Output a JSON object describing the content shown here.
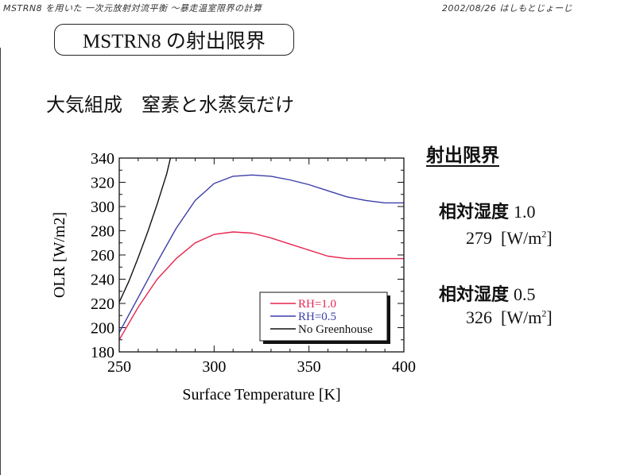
{
  "header": {
    "left_note": "MSTRN8 を用いた 一次元放射対流平衡 〜暴走温室限界の計算",
    "right_note": "2002/08/26 はしもとじょーじ"
  },
  "slide_title": "MSTRN8 の射出限界",
  "subtitle": "大気組成　窒素と水蒸気だけ",
  "side_panel": {
    "heading": "射出限界",
    "entries": [
      {
        "label": "相対湿度",
        "rh": "1.0",
        "value": "279",
        "unit_prefix": "[W/m",
        "unit_sup": "2",
        "unit_suffix": "]"
      },
      {
        "label": "相対湿度",
        "rh": "0.5",
        "value": "326",
        "unit_prefix": "[W/m",
        "unit_sup": "2",
        "unit_suffix": "]"
      }
    ]
  },
  "chart_data": {
    "type": "line",
    "xlabel": "Surface Temperature  [K]",
    "ylabel": "OLR  [W/m2]",
    "xlim": [
      250,
      400
    ],
    "ylim": [
      180,
      340
    ],
    "xticks": [
      250,
      300,
      350,
      400
    ],
    "yticks": [
      180,
      200,
      220,
      240,
      260,
      280,
      300,
      320,
      340
    ],
    "legend_position": "bottom-right",
    "series": [
      {
        "name": "RH=1.0",
        "color": "#e8254f",
        "x": [
          250,
          260,
          270,
          280,
          290,
          300,
          310,
          320,
          330,
          340,
          350,
          360,
          370,
          380,
          390,
          400
        ],
        "y": [
          190,
          217,
          240,
          257,
          270,
          277,
          279,
          278,
          274,
          269,
          264,
          259,
          257,
          257,
          257,
          257
        ]
      },
      {
        "name": "RH=0.5",
        "color": "#3c3ea8",
        "x": [
          250,
          260,
          270,
          280,
          290,
          300,
          310,
          320,
          330,
          340,
          350,
          360,
          370,
          380,
          390,
          400
        ],
        "y": [
          196,
          225,
          254,
          282,
          305,
          319,
          325,
          326,
          325,
          322,
          318,
          313,
          308,
          305,
          303,
          303
        ]
      },
      {
        "name": "No Greenhouse",
        "color": "#111111",
        "x": [
          250,
          255,
          260,
          265,
          270,
          275,
          277
        ],
        "y": [
          221,
          238,
          258,
          279,
          302,
          327,
          340
        ]
      }
    ]
  }
}
